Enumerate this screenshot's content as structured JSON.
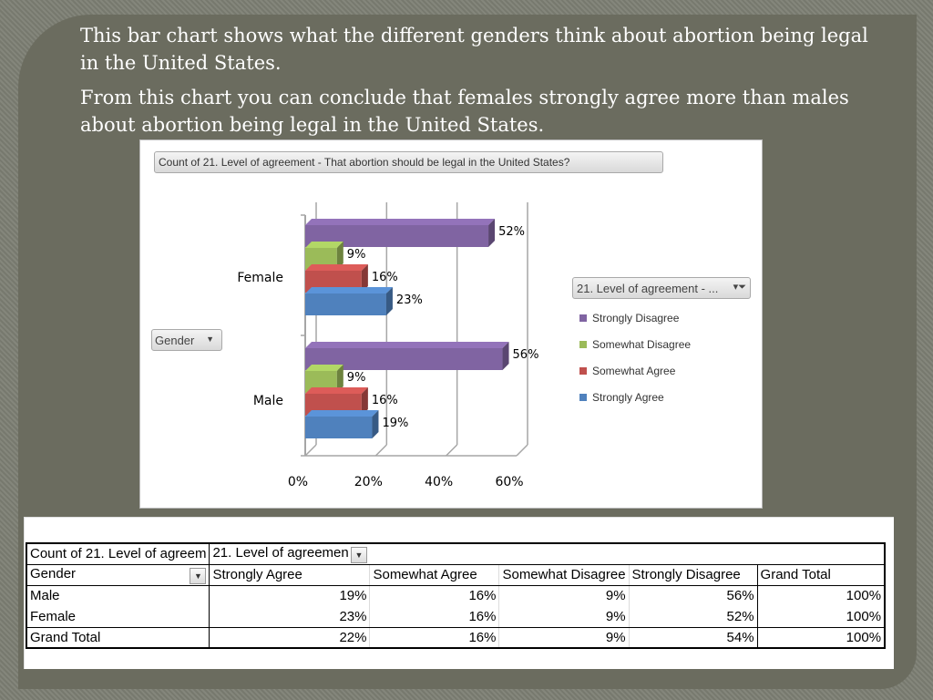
{
  "slide": {
    "paragraphs": [
      "This bar chart shows what the different genders think about abortion being legal in the United States.",
      "From this chart you can conclude that females strongly agree more than males about abortion being legal in the United States."
    ]
  },
  "chart_data": {
    "type": "bar",
    "orientation": "horizontal",
    "title": "Count of 21. Level of agreement - That abortion should be legal in the United States?",
    "categories": [
      "Female",
      "Male"
    ],
    "series": [
      {
        "name": "Strongly Disagree",
        "values": [
          52,
          56
        ],
        "color": "#8064a2"
      },
      {
        "name": "Somewhat Disagree",
        "values": [
          9,
          9
        ],
        "color": "#9bbb59"
      },
      {
        "name": "Somewhat Agree",
        "values": [
          16,
          16
        ],
        "color": "#c0504d"
      },
      {
        "name": "Strongly Agree",
        "values": [
          23,
          19
        ],
        "color": "#4f81bd"
      }
    ],
    "value_unit": "%",
    "xlim": [
      0,
      60
    ],
    "x_ticks": [
      "0%",
      "20%",
      "40%",
      "60%"
    ],
    "legend_title": "21. Level of agreement - ...",
    "axis_field_button": "Gender",
    "legend_position": "right",
    "grid": true
  },
  "pivot_table": {
    "header1": [
      "Count of 21. Level of agreem",
      "21. Level of agreemen"
    ],
    "header2": [
      "Gender",
      "Strongly Agree",
      "Somewhat Agree",
      "Somewhat Disagree",
      "Strongly Disagree",
      "Grand Total"
    ],
    "rows": [
      [
        "Male",
        "19%",
        "16%",
        "9%",
        "56%",
        "100%"
      ],
      [
        "Female",
        "23%",
        "16%",
        "9%",
        "52%",
        "100%"
      ],
      [
        "Grand Total",
        "22%",
        "16%",
        "9%",
        "54%",
        "100%"
      ]
    ]
  }
}
